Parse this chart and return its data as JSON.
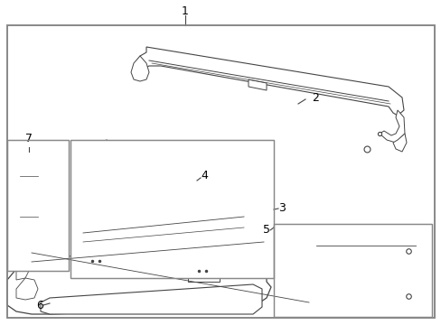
{
  "background_color": "#ffffff",
  "border_color": "#888888",
  "line_color": "#444444",
  "label_color": "#000000",
  "fig_width": 4.89,
  "fig_height": 3.6,
  "dpi": 100
}
